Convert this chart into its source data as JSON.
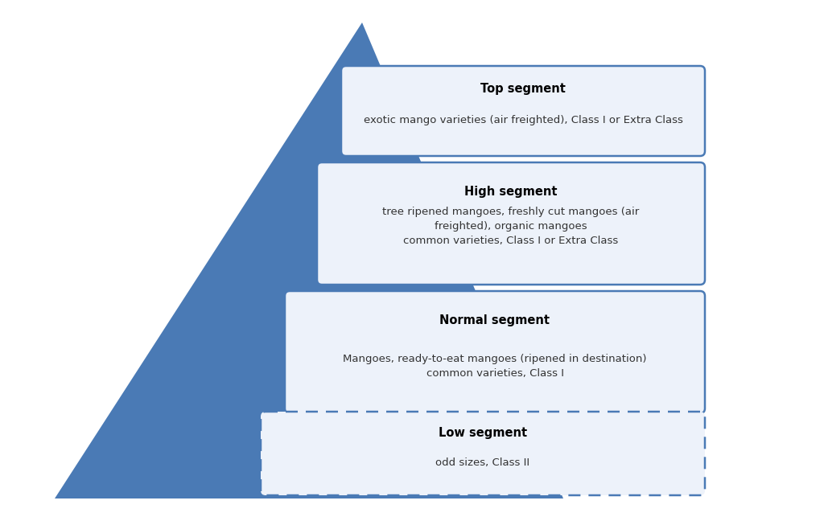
{
  "background_color": "#ffffff",
  "pyramid_color": "#4a7ab5",
  "pyramid_highlight_color": "#d8e4f0",
  "box_fill_color": "#edf2fa",
  "box_edge_color": "#4a7ab5",
  "title_color": "#000000",
  "text_color": "#333333",
  "segments": [
    {
      "title": "Top segment",
      "lines": [
        "exotic mango varieties (air freighted), Class I or Extra Class"
      ],
      "box_style": "solid"
    },
    {
      "title": "High segment",
      "lines": [
        "tree ripened mangoes, freshly cut mangoes (air",
        "freighted), organic mangoes",
        "common varieties, Class I or Extra Class"
      ],
      "box_style": "solid"
    },
    {
      "title": "Normal segment",
      "lines": [
        "Mangoes, ready-to-eat mangoes (ripened in destination)",
        "common varieties, Class I"
      ],
      "box_style": "solid"
    },
    {
      "title": "Low segment",
      "lines": [
        "odd sizes, Class II"
      ],
      "box_style": "dashed"
    }
  ],
  "figsize": [
    10.24,
    6.48
  ],
  "dpi": 100
}
